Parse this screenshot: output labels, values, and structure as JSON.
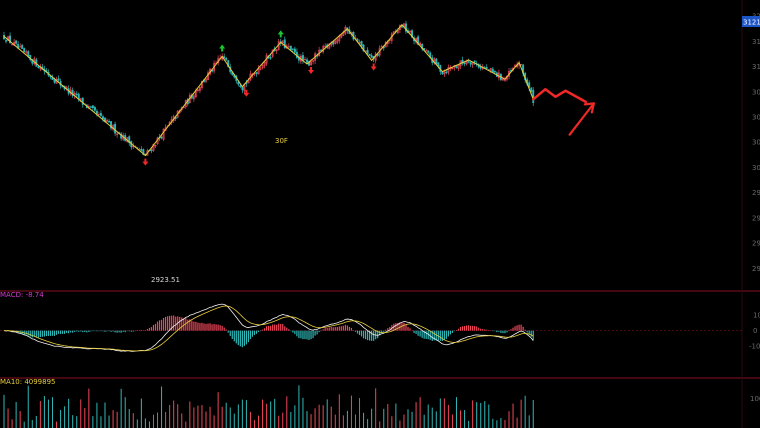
{
  "chart_data": {
    "type": "candlestick",
    "price_panel": {
      "last_price_tag": "3121.",
      "axis_ticks": [
        {
          "label": "32",
          "value": 3200
        },
        {
          "label": "31",
          "value": 3150
        },
        {
          "label": "31",
          "value": 3100
        },
        {
          "label": "30",
          "value": 3050
        },
        {
          "label": "30",
          "value": 3000
        },
        {
          "label": "30",
          "value": 2950
        },
        {
          "label": "30",
          "value": 2900
        },
        {
          "label": "29",
          "value": 2850
        },
        {
          "label": "29",
          "value": 2800
        },
        {
          "label": "29",
          "value": 2750
        },
        {
          "label": "29",
          "value": 2700
        }
      ],
      "ylim": [
        2665,
        3220
      ],
      "low_annotation": {
        "text": "2923.51",
        "value": 2923.51
      },
      "label_30f": "30F",
      "zigzag": [
        {
          "bar": 0,
          "value": 3160
        },
        {
          "bar": 70,
          "value": 2923.51
        },
        {
          "bar": 108,
          "value": 3120
        },
        {
          "bar": 118,
          "value": 3060
        },
        {
          "bar": 137,
          "value": 3148
        },
        {
          "bar": 150,
          "value": 3105
        },
        {
          "bar": 170,
          "value": 3175
        },
        {
          "bar": 182,
          "value": 3112
        },
        {
          "bar": 197,
          "value": 3183
        },
        {
          "bar": 217,
          "value": 3090
        },
        {
          "bar": 230,
          "value": 3113
        },
        {
          "bar": 248,
          "value": 3075
        },
        {
          "bar": 255,
          "value": 3108
        },
        {
          "bar": 262,
          "value": 3035
        }
      ],
      "up_arrows": [
        {
          "bar": 108,
          "value": 3120
        },
        {
          "bar": 137,
          "value": 3148
        }
      ],
      "down_arrows": [
        {
          "bar": 70,
          "value": 2923.51
        },
        {
          "bar": 120,
          "value": 3060
        },
        {
          "bar": 152,
          "value": 3105
        },
        {
          "bar": 183,
          "value": 3112
        }
      ],
      "projection": [
        {
          "bar": 262,
          "value": 3035
        },
        {
          "bar": 268,
          "value": 3055
        },
        {
          "bar": 273,
          "value": 3040
        },
        {
          "bar": 278,
          "value": 3052
        },
        {
          "bar": 288,
          "value": 3030
        }
      ],
      "projection_arrow": [
        {
          "bar": 280,
          "value": 2965
        },
        {
          "bar": 292,
          "value": 3027
        }
      ]
    },
    "macd_panel": {
      "label": "MACD: -8.74",
      "axis_ticks": [
        {
          "label": "10",
          "value": 10
        },
        {
          "label": "0",
          "value": 0
        },
        {
          "label": "-10",
          "value": -10
        }
      ],
      "ylim": [
        -30,
        25
      ]
    },
    "volume_panel": {
      "label": "MA10: 4099895",
      "axis_ticks": [
        {
          "label": "100",
          "value": 100
        }
      ],
      "ylim": [
        0,
        160
      ]
    },
    "colors": {
      "up": "#f0475a",
      "down": "#2fb8b8",
      "zigzag": "#e8cf3c",
      "macd_dif": "#f2f2f2",
      "macd_dea": "#e8cf3c",
      "panel_border": "#8a1020",
      "arrow_up": "#19c82e",
      "arrow_down": "#f02828",
      "projection": "#f02828",
      "price_tag_bg": "#1d54c6",
      "macd_label": "#d03cd0",
      "volume_label": "#e8cf3c",
      "axis_text": "#6a6a6a"
    }
  }
}
